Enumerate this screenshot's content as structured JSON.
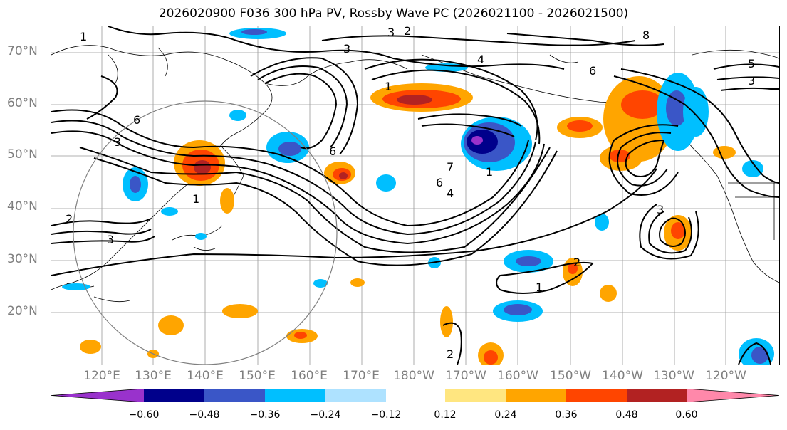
{
  "title": "2026020900 F036 300 hPa PV, Rossby Wave PC (2026021100 - 2026021500)",
  "map": {
    "lat_labels": [
      "70°N",
      "60°N",
      "50°N",
      "40°N",
      "30°N",
      "20°N"
    ],
    "lon_labels": [
      "120°E",
      "130°E",
      "140°E",
      "150°E",
      "160°E",
      "170°E",
      "180°W",
      "170°W",
      "160°W",
      "150°W",
      "140°W",
      "130°W",
      "120°W"
    ],
    "contour_labels": [
      "1",
      "2",
      "3",
      "4",
      "5",
      "6",
      "7",
      "8"
    ]
  },
  "colorbar": {
    "ticks": [
      "−0.60",
      "−0.48",
      "−0.36",
      "−0.24",
      "−0.12",
      "0.12",
      "0.24",
      "0.36",
      "0.48",
      "0.60"
    ],
    "colors": [
      "#9932cc",
      "#00008b",
      "#3a56c7",
      "#00bfff",
      "#aee2ff",
      "#ffffff",
      "#ffe680",
      "#ffa500",
      "#ff4500",
      "#b22222",
      "#ff88aa"
    ]
  }
}
